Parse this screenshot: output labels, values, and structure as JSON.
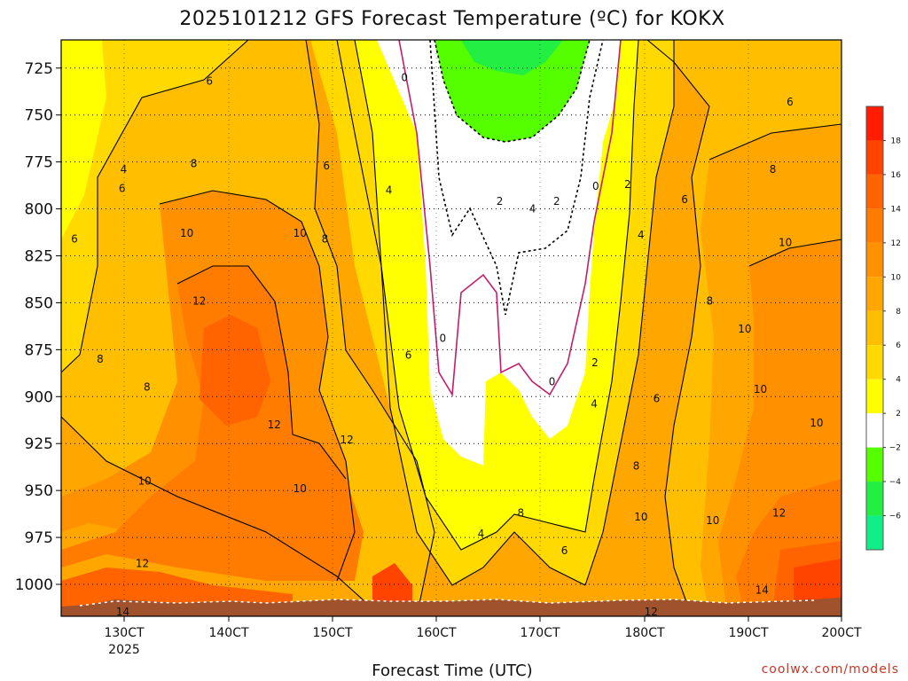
{
  "chart_data": {
    "type": "heatmap",
    "title": "2025101212 GFS Forecast Temperature (ºC) for KOKX",
    "xlabel": "Forecast Time (UTC)",
    "ylabel": "",
    "x_ticks": [
      "130CT",
      "140CT",
      "150CT",
      "160CT",
      "170CT",
      "180CT",
      "190CT",
      "200CT"
    ],
    "x_tick_sub": "2025",
    "xlim": [
      "2025-10-12T12Z",
      "2025-10-20T00Z"
    ],
    "y_ticks": [
      725,
      750,
      775,
      800,
      825,
      850,
      875,
      900,
      925,
      950,
      975,
      1000
    ],
    "ylim": [
      1017,
      710
    ],
    "y_scale": "pressure (hPa), inverted",
    "grid": true,
    "colorbar": {
      "labels": [
        "18",
        "16",
        "14",
        "12",
        "10",
        "8",
        "6",
        "4",
        "2",
        "−2",
        "−4",
        "−6"
      ],
      "bands": [
        {
          "from": 18,
          "to": 20,
          "color": "#ff1c00"
        },
        {
          "from": 16,
          "to": 18,
          "color": "#ff4400"
        },
        {
          "from": 14,
          "to": 16,
          "color": "#ff6400"
        },
        {
          "from": 12,
          "to": 14,
          "color": "#ff7c00"
        },
        {
          "from": 10,
          "to": 12,
          "color": "#ff9100"
        },
        {
          "from": 8,
          "to": 10,
          "color": "#ffa600"
        },
        {
          "from": 6,
          "to": 8,
          "color": "#ffbf00"
        },
        {
          "from": 4,
          "to": 6,
          "color": "#ffd900"
        },
        {
          "from": 2,
          "to": 4,
          "color": "#ffff00"
        },
        {
          "from": -2,
          "to": 2,
          "color": "#ffffff"
        },
        {
          "from": -4,
          "to": -2,
          "color": "#55ff00"
        },
        {
          "from": -6,
          "to": -4,
          "color": "#22ee44"
        },
        {
          "from": -8,
          "to": -6,
          "color": "#11ee88"
        }
      ]
    },
    "contour_labels": [
      {
        "text": "6",
        "t": 0.19,
        "p": 732
      },
      {
        "text": "0",
        "t": 0.44,
        "p": 730
      },
      {
        "text": "4",
        "t": 0.08,
        "p": 779
      },
      {
        "text": "8",
        "t": 0.17,
        "p": 776
      },
      {
        "text": "6",
        "t": 0.34,
        "p": 777
      },
      {
        "text": "4",
        "t": 0.42,
        "p": 790
      },
      {
        "text": "6",
        "t": 0.078,
        "p": 789
      },
      {
        "text": "0",
        "t": 0.685,
        "p": 788
      },
      {
        "text": "2",
        "t": 0.726,
        "p": 787
      },
      {
        "text": "6",
        "t": 0.799,
        "p": 795
      },
      {
        "text": "8",
        "t": 0.912,
        "p": 779
      },
      {
        "text": "6",
        "t": 0.934,
        "p": 743
      },
      {
        "text": "2",
        "t": 0.562,
        "p": 796
      },
      {
        "text": "4",
        "t": 0.604,
        "p": 800
      },
      {
        "text": "2",
        "t": 0.635,
        "p": 796
      },
      {
        "text": "6",
        "t": 0.017,
        "p": 816
      },
      {
        "text": "10",
        "t": 0.161,
        "p": 813
      },
      {
        "text": "10",
        "t": 0.306,
        "p": 813
      },
      {
        "text": "8",
        "t": 0.338,
        "p": 816
      },
      {
        "text": "4",
        "t": 0.743,
        "p": 814
      },
      {
        "text": "10",
        "t": 0.928,
        "p": 818
      },
      {
        "text": "12",
        "t": 0.177,
        "p": 849
      },
      {
        "text": "8",
        "t": 0.831,
        "p": 849
      },
      {
        "text": "10",
        "t": 0.876,
        "p": 864
      },
      {
        "text": "0",
        "t": 0.489,
        "p": 869
      },
      {
        "text": "6",
        "t": 0.445,
        "p": 878
      },
      {
        "text": "8",
        "t": 0.05,
        "p": 880
      },
      {
        "text": "0",
        "t": 0.629,
        "p": 892
      },
      {
        "text": "2",
        "t": 0.684,
        "p": 882
      },
      {
        "text": "8",
        "t": 0.11,
        "p": 895
      },
      {
        "text": "10",
        "t": 0.896,
        "p": 896
      },
      {
        "text": "6",
        "t": 0.763,
        "p": 901
      },
      {
        "text": "4",
        "t": 0.683,
        "p": 904
      },
      {
        "text": "12",
        "t": 0.273,
        "p": 915
      },
      {
        "text": "12",
        "t": 0.366,
        "p": 923
      },
      {
        "text": "10",
        "t": 0.968,
        "p": 914
      },
      {
        "text": "10",
        "t": 0.107,
        "p": 945
      },
      {
        "text": "10",
        "t": 0.306,
        "p": 949
      },
      {
        "text": "8",
        "t": 0.737,
        "p": 937
      },
      {
        "text": "8",
        "t": 0.589,
        "p": 962
      },
      {
        "text": "10",
        "t": 0.743,
        "p": 964
      },
      {
        "text": "10",
        "t": 0.835,
        "p": 966
      },
      {
        "text": "12",
        "t": 0.92,
        "p": 962
      },
      {
        "text": "4",
        "t": 0.538,
        "p": 973
      },
      {
        "text": "6",
        "t": 0.645,
        "p": 982
      },
      {
        "text": "12",
        "t": 0.104,
        "p": 989
      },
      {
        "text": "14",
        "t": 0.898,
        "p": 1003
      },
      {
        "text": "14",
        "t": 0.079,
        "p": 1029
      },
      {
        "text": "12",
        "t": 0.756,
        "p": 1044
      }
    ]
  },
  "credit": "coolwx.com/models"
}
